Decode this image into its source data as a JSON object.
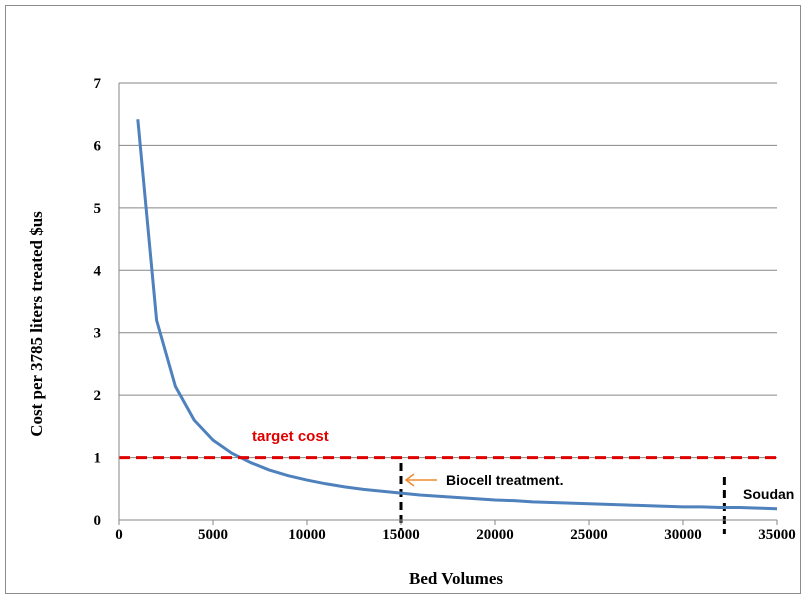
{
  "chart_data": {
    "type": "line",
    "title": "",
    "xlabel": "Bed Volumes",
    "ylabel": "Cost per 3785 liters  treated $us",
    "xlim": [
      0,
      35000
    ],
    "ylim": [
      0,
      7
    ],
    "x_ticks": [
      "0",
      "5000",
      "10000",
      "15000",
      "20000",
      "25000",
      "30000",
      "35000"
    ],
    "y_ticks": [
      "0",
      "1",
      "2",
      "3",
      "4",
      "5",
      "6",
      "7"
    ],
    "grid": "horizontal",
    "series": [
      {
        "color": "#4f81bd",
        "x": [
          1000,
          2000,
          3000,
          4000,
          5000,
          6000,
          7000,
          8000,
          9000,
          10000,
          11000,
          12000,
          13000,
          14000,
          15000,
          16000,
          17000,
          18000,
          19000,
          20000,
          21000,
          22000,
          23000,
          24000,
          25000,
          26000,
          27000,
          28000,
          29000,
          30000,
          31000,
          32000,
          33000,
          34000,
          35000
        ],
        "y": [
          6.42,
          3.2,
          2.14,
          1.6,
          1.28,
          1.07,
          0.92,
          0.8,
          0.71,
          0.64,
          0.58,
          0.53,
          0.49,
          0.46,
          0.43,
          0.4,
          0.38,
          0.36,
          0.34,
          0.32,
          0.31,
          0.29,
          0.28,
          0.27,
          0.26,
          0.25,
          0.24,
          0.23,
          0.22,
          0.21,
          0.21,
          0.2,
          0.2,
          0.19,
          0.18
        ]
      }
    ],
    "target_line": {
      "y": 1.0,
      "label": "target cost",
      "color": "#e00000"
    },
    "markers": [
      {
        "x": 15000,
        "label": "Biocell  treatment.",
        "arrow_color": "#f08a2c"
      },
      {
        "x": 32200,
        "label": "Soudan"
      }
    ]
  }
}
